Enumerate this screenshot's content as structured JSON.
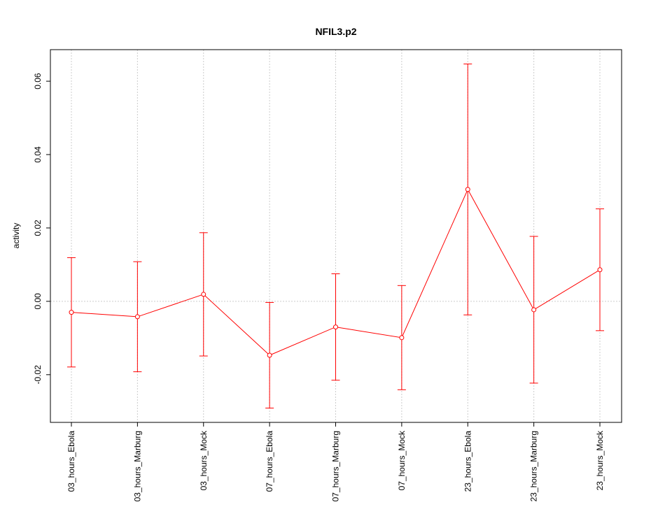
{
  "chart_data": {
    "type": "line",
    "title": "NFIL3.p2",
    "y_label": "activity",
    "categories": [
      "03_hours_Ebola",
      "03_hours_Marburg",
      "03_hours_Mock",
      "07_hours_Ebola",
      "07_hours_Marburg",
      "07_hours_Mock",
      "23_hours_Ebola",
      "23_hours_Marburg",
      "23_hours_Mock"
    ],
    "series": [
      {
        "color": "#ff0000",
        "values": [
          -0.003,
          -0.0042,
          0.0019,
          -0.0147,
          -0.007,
          -0.0099,
          0.0305,
          -0.0023,
          0.0086
        ],
        "errors": [
          0.0149,
          0.015,
          0.0168,
          0.0144,
          0.0145,
          0.0142,
          0.0342,
          0.02,
          0.0166
        ]
      }
    ],
    "ylim": [
      -0.033,
      0.0686
    ],
    "yticks": [
      -0.02,
      {
        "value": 0,
        "label": "0.00"
      },
      0.02,
      0.04,
      0.06
    ],
    "grid": true,
    "reference_line": 0
  }
}
